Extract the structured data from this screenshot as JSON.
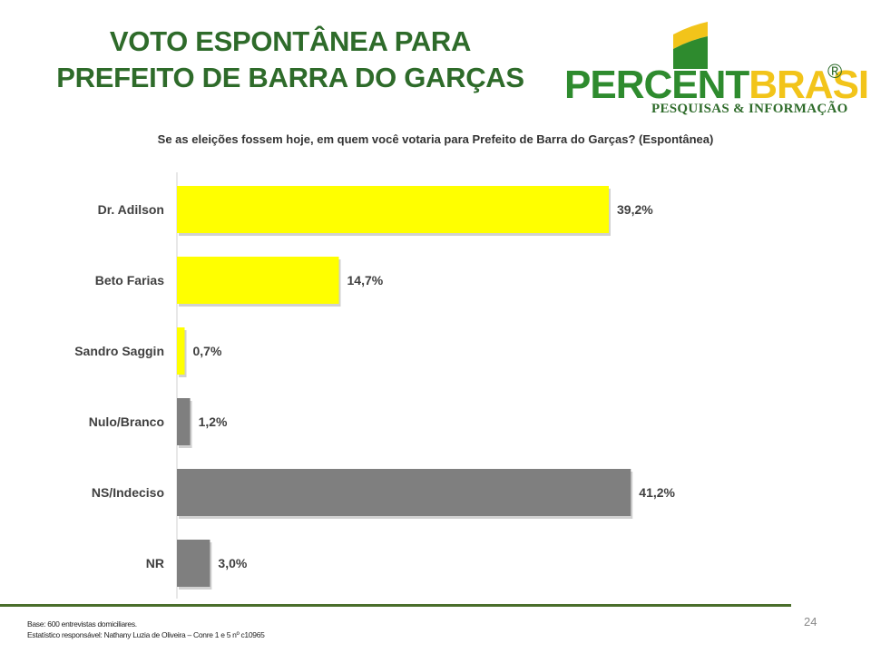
{
  "header": {
    "title_line1": "VOTO ESPONTÂNEA PARA",
    "title_line2": "PREFEITO DE BARRA DO GARÇAS",
    "logo_percent": "PERCENT",
    "logo_brasil": "BRASIL",
    "logo_registered": "®",
    "logo_tagline": "PESQUISAS & INFORMAÇÃO"
  },
  "chart_data": {
    "type": "bar",
    "orientation": "horizontal",
    "title": "Se as eleições fossem hoje, em quem você votaria para Prefeito de Barra do  Garças? (Espontânea)",
    "categories": [
      "Dr. Adilson",
      "Beto Farias",
      "Sandro Saggin",
      "Nulo/Branco",
      "NS/Indeciso",
      "NR"
    ],
    "values": [
      39.2,
      14.7,
      0.7,
      1.2,
      41.2,
      3.0
    ],
    "data_labels": [
      "39,2%",
      "14,7%",
      "0,7%",
      "1,2%",
      "41,2%",
      "3,0%"
    ],
    "bar_colors": [
      "#ffff00",
      "#ffff00",
      "#ffff00",
      "#7f7f7f",
      "#7f7f7f",
      "#7f7f7f"
    ],
    "xlim": [
      0,
      45
    ],
    "grid": false,
    "legend": "none"
  },
  "footer": {
    "base": "Base: 600 entrevistas domiciliares.",
    "statistician": "Estatístico responsável: Nathany Luzia de Oliveira – Conre 1 e 5 nº c10965",
    "page_number": "24"
  },
  "colors": {
    "title_green": "#2e6b2a",
    "footer_line": "#4a6e2b",
    "candidate_bar": "#ffff00",
    "other_bar": "#7f7f7f"
  }
}
